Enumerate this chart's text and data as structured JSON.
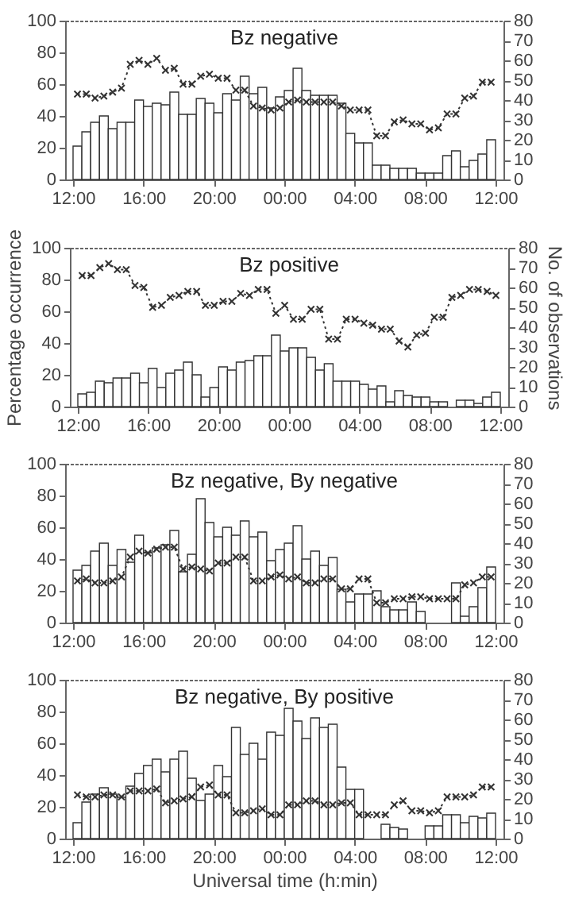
{
  "chart_data": [
    {
      "type": "bar",
      "title": "Bz negative",
      "xlim": [
        "2000-01-01T12:00",
        "2000-01-02T12:00"
      ],
      "xticks": [
        {
          "value": "2000-01-01T12:00",
          "label": "12:00"
        },
        {
          "value": "2000-01-01T16:00",
          "label": "16:00"
        },
        {
          "value": "2000-01-01T20:00",
          "label": "20:00"
        },
        {
          "value": "2000-01-02T00:00",
          "label": "00:00"
        },
        {
          "value": "2000-01-02T04:00",
          "label": "04:00"
        },
        {
          "value": "2000-01-02T08:00",
          "label": "08:00"
        },
        {
          "value": "2000-01-02T12:00",
          "label": "12:00"
        }
      ],
      "ylim": [
        0,
        100
      ],
      "yticks": [
        0,
        20,
        40,
        60,
        80,
        100
      ],
      "y2lim": [
        0,
        80
      ],
      "y2ticks": [
        0,
        10,
        20,
        30,
        40,
        50,
        60,
        70,
        80
      ],
      "marker": "cross",
      "x": [
        "2000-01-01T12:15",
        "2000-01-01T12:45",
        "2000-01-01T13:15",
        "2000-01-01T13:45",
        "2000-01-01T14:15",
        "2000-01-01T14:45",
        "2000-01-01T15:15",
        "2000-01-01T15:45",
        "2000-01-01T16:15",
        "2000-01-01T16:45",
        "2000-01-01T17:15",
        "2000-01-01T17:45",
        "2000-01-01T18:15",
        "2000-01-01T18:45",
        "2000-01-01T19:15",
        "2000-01-01T19:45",
        "2000-01-01T20:15",
        "2000-01-01T20:45",
        "2000-01-01T21:15",
        "2000-01-01T21:45",
        "2000-01-01T22:15",
        "2000-01-01T22:45",
        "2000-01-01T23:15",
        "2000-01-01T23:45",
        "2000-01-02T00:15",
        "2000-01-02T00:45",
        "2000-01-02T01:15",
        "2000-01-02T01:45",
        "2000-01-02T02:15",
        "2000-01-02T02:45",
        "2000-01-02T03:15",
        "2000-01-02T03:45",
        "2000-01-02T04:15",
        "2000-01-02T04:45",
        "2000-01-02T05:15",
        "2000-01-02T05:45",
        "2000-01-02T06:15",
        "2000-01-02T06:45",
        "2000-01-02T07:15",
        "2000-01-02T07:45",
        "2000-01-02T08:15",
        "2000-01-02T08:45",
        "2000-01-02T09:15",
        "2000-01-02T09:45",
        "2000-01-02T10:15",
        "2000-01-02T10:45",
        "2000-01-02T11:15",
        "2000-01-02T11:45"
      ],
      "series": [
        {
          "color": "#ffffff",
          "values": [
            21,
            30,
            36,
            40,
            32,
            36,
            36,
            50,
            46,
            48,
            47,
            55,
            41,
            41,
            51,
            48,
            42,
            54,
            50,
            65,
            54,
            58,
            45,
            52,
            56,
            70,
            56,
            53,
            53,
            53,
            48,
            29,
            23,
            23,
            9,
            9,
            7,
            7,
            7,
            4,
            4,
            4,
            15,
            18,
            8,
            12,
            16,
            25
          ]
        },
        {
          "type": "line",
          "axis": "y2",
          "color": "#333333",
          "line_style": "dotted",
          "values": [
            43,
            43,
            41,
            42,
            44,
            46,
            58,
            60,
            58,
            61,
            55,
            56,
            48,
            48,
            52,
            53,
            51,
            51,
            45,
            45,
            37,
            36,
            35,
            36,
            39,
            40,
            39,
            39,
            39,
            39,
            37,
            35,
            35,
            35,
            22,
            22,
            29,
            30,
            28,
            28,
            25,
            26,
            33,
            33,
            41,
            42,
            49,
            49
          ]
        }
      ]
    },
    {
      "type": "bar",
      "title": "Bz positive",
      "ylabel": "Percentage occurrence",
      "y2label": "No. of observations",
      "xlim": [
        "2000-01-01T12:00",
        "2000-01-02T12:00"
      ],
      "xticks": [
        {
          "value": "2000-01-01T12:00",
          "label": "12:00"
        },
        {
          "value": "2000-01-01T16:00",
          "label": "16:00"
        },
        {
          "value": "2000-01-01T20:00",
          "label": "20:00"
        },
        {
          "value": "2000-01-02T00:00",
          "label": "00:00"
        },
        {
          "value": "2000-01-02T04:00",
          "label": "04:00"
        },
        {
          "value": "2000-01-02T08:00",
          "label": "08:00"
        },
        {
          "value": "2000-01-02T12:00",
          "label": "12:00"
        }
      ],
      "ylim": [
        0,
        100
      ],
      "yticks": [
        0,
        20,
        40,
        60,
        80,
        100
      ],
      "y2lim": [
        0,
        80
      ],
      "y2ticks": [
        0,
        10,
        20,
        30,
        40,
        50,
        60,
        70,
        80
      ],
      "marker": "cross",
      "x": [
        "2000-01-01T12:15",
        "2000-01-01T12:45",
        "2000-01-01T13:15",
        "2000-01-01T13:45",
        "2000-01-01T14:15",
        "2000-01-01T14:45",
        "2000-01-01T15:15",
        "2000-01-01T15:45",
        "2000-01-01T16:15",
        "2000-01-01T16:45",
        "2000-01-01T17:15",
        "2000-01-01T17:45",
        "2000-01-01T18:15",
        "2000-01-01T18:45",
        "2000-01-01T19:15",
        "2000-01-01T19:45",
        "2000-01-01T20:15",
        "2000-01-01T20:45",
        "2000-01-01T21:15",
        "2000-01-01T21:45",
        "2000-01-01T22:15",
        "2000-01-01T22:45",
        "2000-01-01T23:15",
        "2000-01-01T23:45",
        "2000-01-02T00:15",
        "2000-01-02T00:45",
        "2000-01-02T01:15",
        "2000-01-02T01:45",
        "2000-01-02T02:15",
        "2000-01-02T02:45",
        "2000-01-02T03:15",
        "2000-01-02T03:45",
        "2000-01-02T04:15",
        "2000-01-02T04:45",
        "2000-01-02T05:15",
        "2000-01-02T05:45",
        "2000-01-02T06:15",
        "2000-01-02T06:45",
        "2000-01-02T07:15",
        "2000-01-02T07:45",
        "2000-01-02T08:15",
        "2000-01-02T08:45",
        "2000-01-02T09:15",
        "2000-01-02T09:45",
        "2000-01-02T10:15",
        "2000-01-02T10:45",
        "2000-01-02T11:15",
        "2000-01-02T11:45"
      ],
      "series": [
        {
          "color": "#ffffff",
          "values": [
            8,
            9,
            16,
            15,
            18,
            18,
            21,
            15,
            24,
            12,
            21,
            23,
            28,
            20,
            6,
            12,
            25,
            23,
            28,
            29,
            32,
            32,
            45,
            35,
            37,
            37,
            31,
            23,
            27,
            16,
            16,
            16,
            14,
            11,
            13,
            3,
            10,
            7,
            6,
            6,
            3,
            3,
            null,
            4,
            4,
            2,
            6,
            9
          ]
        },
        {
          "type": "line",
          "axis": "y2",
          "color": "#333333",
          "line_style": "dotted",
          "values": [
            66,
            66,
            70,
            72,
            69,
            69,
            61,
            60,
            50,
            51,
            55,
            56,
            58,
            58,
            51,
            51,
            53,
            53,
            57,
            56,
            59,
            59,
            47,
            51,
            44,
            44,
            49,
            49,
            34,
            34,
            44,
            44,
            42,
            41,
            39,
            39,
            33,
            30,
            36,
            37,
            45,
            45,
            55,
            56,
            59,
            59,
            58,
            56
          ]
        }
      ]
    },
    {
      "type": "bar",
      "title": "Bz negative, By negative",
      "xlim": [
        "2000-01-01T12:00",
        "2000-01-02T12:00"
      ],
      "xticks": [
        {
          "value": "2000-01-01T12:00",
          "label": "12:00"
        },
        {
          "value": "2000-01-01T16:00",
          "label": "16:00"
        },
        {
          "value": "2000-01-01T20:00",
          "label": "20:00"
        },
        {
          "value": "2000-01-02T00:00",
          "label": "00:00"
        },
        {
          "value": "2000-01-02T04:00",
          "label": "04:00"
        },
        {
          "value": "2000-01-02T08:00",
          "label": "08:00"
        },
        {
          "value": "2000-01-02T12:00",
          "label": "12:00"
        }
      ],
      "ylim": [
        0,
        100
      ],
      "yticks": [
        0,
        20,
        40,
        60,
        80,
        100
      ],
      "y2lim": [
        0,
        80
      ],
      "y2ticks": [
        0,
        10,
        20,
        30,
        40,
        50,
        60,
        70,
        80
      ],
      "marker": "cross",
      "x": [
        "2000-01-01T12:15",
        "2000-01-01T12:45",
        "2000-01-01T13:15",
        "2000-01-01T13:45",
        "2000-01-01T14:15",
        "2000-01-01T14:45",
        "2000-01-01T15:15",
        "2000-01-01T15:45",
        "2000-01-01T16:15",
        "2000-01-01T16:45",
        "2000-01-01T17:15",
        "2000-01-01T17:45",
        "2000-01-01T18:15",
        "2000-01-01T18:45",
        "2000-01-01T19:15",
        "2000-01-01T19:45",
        "2000-01-01T20:15",
        "2000-01-01T20:45",
        "2000-01-01T21:15",
        "2000-01-01T21:45",
        "2000-01-01T22:15",
        "2000-01-01T22:45",
        "2000-01-01T23:15",
        "2000-01-01T23:45",
        "2000-01-02T00:15",
        "2000-01-02T00:45",
        "2000-01-02T01:15",
        "2000-01-02T01:45",
        "2000-01-02T02:15",
        "2000-01-02T02:45",
        "2000-01-02T03:15",
        "2000-01-02T03:45",
        "2000-01-02T04:15",
        "2000-01-02T04:45",
        "2000-01-02T05:15",
        "2000-01-02T05:45",
        "2000-01-02T06:15",
        "2000-01-02T06:45",
        "2000-01-02T07:15",
        "2000-01-02T07:45",
        "2000-01-02T08:15",
        "2000-01-02T08:45",
        "2000-01-02T09:15",
        "2000-01-02T09:45",
        "2000-01-02T10:15",
        "2000-01-02T10:45",
        "2000-01-02T11:15",
        "2000-01-02T11:45"
      ],
      "series": [
        {
          "color": "#ffffff",
          "values": [
            33,
            36,
            45,
            50,
            36,
            46,
            38,
            55,
            44,
            47,
            49,
            58,
            32,
            43,
            78,
            63,
            54,
            60,
            55,
            64,
            54,
            57,
            39,
            46,
            50,
            61,
            40,
            45,
            36,
            41,
            21,
            13,
            18,
            18,
            20,
            10,
            8,
            8,
            13,
            7,
            null,
            null,
            null,
            25,
            4,
            10,
            22,
            35
          ]
        },
        {
          "type": "line",
          "axis": "y2",
          "color": "#333333",
          "line_style": "dotted",
          "values": [
            21,
            22,
            20,
            20,
            21,
            23,
            33,
            36,
            35,
            37,
            38,
            38,
            27,
            28,
            27,
            26,
            30,
            30,
            33,
            33,
            21,
            21,
            23,
            24,
            22,
            23,
            20,
            20,
            22,
            22,
            17,
            17,
            22,
            22,
            10,
            10,
            12,
            12,
            13,
            13,
            12,
            12,
            12,
            12,
            19,
            20,
            23,
            23
          ]
        }
      ]
    },
    {
      "type": "bar",
      "title": "Bz negative, By positive",
      "xlabel": "Universal time (h:min)",
      "xlim": [
        "2000-01-01T12:00",
        "2000-01-02T12:00"
      ],
      "xticks": [
        {
          "value": "2000-01-01T12:00",
          "label": "12:00"
        },
        {
          "value": "2000-01-01T16:00",
          "label": "16:00"
        },
        {
          "value": "2000-01-01T20:00",
          "label": "20:00"
        },
        {
          "value": "2000-01-02T00:00",
          "label": "00:00"
        },
        {
          "value": "2000-01-02T04:00",
          "label": "04:00"
        },
        {
          "value": "2000-01-02T08:00",
          "label": "08:00"
        },
        {
          "value": "2000-01-02T12:00",
          "label": "12:00"
        }
      ],
      "ylim": [
        0,
        100
      ],
      "yticks": [
        0,
        20,
        40,
        60,
        80,
        100
      ],
      "y2lim": [
        0,
        80
      ],
      "y2ticks": [
        0,
        10,
        20,
        30,
        40,
        50,
        60,
        70,
        80
      ],
      "marker": "cross",
      "x": [
        "2000-01-01T12:15",
        "2000-01-01T12:45",
        "2000-01-01T13:15",
        "2000-01-01T13:45",
        "2000-01-01T14:15",
        "2000-01-01T14:45",
        "2000-01-01T15:15",
        "2000-01-01T15:45",
        "2000-01-01T16:15",
        "2000-01-01T16:45",
        "2000-01-01T17:15",
        "2000-01-01T17:45",
        "2000-01-01T18:15",
        "2000-01-01T18:45",
        "2000-01-01T19:15",
        "2000-01-01T19:45",
        "2000-01-01T20:15",
        "2000-01-01T20:45",
        "2000-01-01T21:15",
        "2000-01-01T21:45",
        "2000-01-01T22:15",
        "2000-01-01T22:45",
        "2000-01-01T23:15",
        "2000-01-01T23:45",
        "2000-01-02T00:15",
        "2000-01-02T00:45",
        "2000-01-02T01:15",
        "2000-01-02T01:45",
        "2000-01-02T02:15",
        "2000-01-02T02:45",
        "2000-01-02T03:15",
        "2000-01-02T03:45",
        "2000-01-02T04:15",
        "2000-01-02T04:45",
        "2000-01-02T05:15",
        "2000-01-02T05:45",
        "2000-01-02T06:15",
        "2000-01-02T06:45",
        "2000-01-02T07:15",
        "2000-01-02T07:45",
        "2000-01-02T08:15",
        "2000-01-02T08:45",
        "2000-01-02T09:15",
        "2000-01-02T09:45",
        "2000-01-02T10:15",
        "2000-01-02T10:45",
        "2000-01-02T11:15",
        "2000-01-02T11:45"
      ],
      "series": [
        {
          "color": "#ffffff",
          "values": [
            10,
            23,
            28,
            32,
            28,
            26,
            33,
            41,
            46,
            50,
            42,
            50,
            55,
            38,
            24,
            28,
            46,
            39,
            70,
            53,
            60,
            50,
            67,
            65,
            82,
            74,
            63,
            76,
            70,
            72,
            45,
            31,
            31,
            null,
            null,
            9,
            7,
            6,
            null,
            null,
            8,
            8,
            15,
            15,
            10,
            14,
            13,
            16
          ]
        },
        {
          "type": "line",
          "axis": "y2",
          "color": "#333333",
          "line_style": "dotted",
          "values": [
            22,
            21,
            21,
            22,
            22,
            21,
            24,
            24,
            24,
            25,
            18,
            19,
            20,
            21,
            26,
            27,
            22,
            22,
            13,
            13,
            14,
            15,
            12,
            12,
            17,
            17,
            19,
            19,
            17,
            17,
            18,
            18,
            12,
            12,
            12,
            12,
            17,
            19,
            14,
            14,
            13,
            14,
            21,
            21,
            21,
            22,
            26,
            26
          ]
        }
      ]
    }
  ]
}
